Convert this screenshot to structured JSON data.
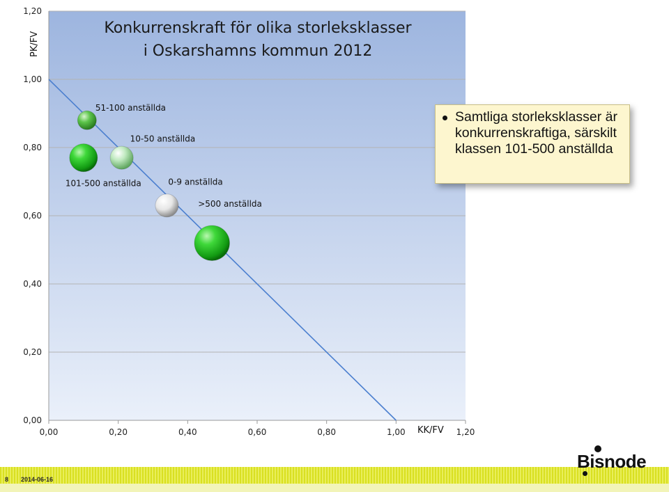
{
  "chart_data": {
    "type": "scatter",
    "title_lines": [
      "Konkurrenskraft för olika storleksklasser",
      "i Oskarshamns kommun 2012"
    ],
    "xlabel": "KK/FV",
    "ylabel": "PK/FV",
    "xlim": [
      0,
      1.2
    ],
    "ylim": [
      0,
      1.2
    ],
    "x_ticks": [
      "0,00",
      "0,20",
      "0,40",
      "0,60",
      "0,80",
      "1,00",
      "1,20"
    ],
    "y_ticks": [
      "0,00",
      "0,20",
      "0,40",
      "0,60",
      "0,80",
      "1,00",
      "1,20"
    ],
    "grid": "horizontal",
    "reference_line": {
      "from": [
        0,
        1.0
      ],
      "to": [
        1.0,
        0
      ]
    },
    "points": [
      {
        "label": "51-100 anställda",
        "x": 0.11,
        "y": 0.88,
        "size": 1,
        "color": "#4caf2a"
      },
      {
        "label": "101-500 anställda",
        "x": 0.1,
        "y": 0.77,
        "size": 2.2,
        "color": "#18b418"
      },
      {
        "label": "10-50 anställda",
        "x": 0.21,
        "y": 0.77,
        "size": 1.5,
        "color": "#8fd48f"
      },
      {
        "label": "0-9 anställda",
        "x": 0.34,
        "y": 0.63,
        "size": 1.5,
        "color": "#e0e0e0"
      },
      {
        "label": ">500 anställda",
        "x": 0.47,
        "y": 0.52,
        "size": 3.5,
        "color": "#18c418"
      }
    ]
  },
  "callout": {
    "text": "Samtliga storleksklasser är konkurrenskraftiga, särskilt klassen 101-500 anställda"
  },
  "footer": {
    "page_number": "8",
    "date": "2014-06-16",
    "logo_text": "Bisnode"
  }
}
